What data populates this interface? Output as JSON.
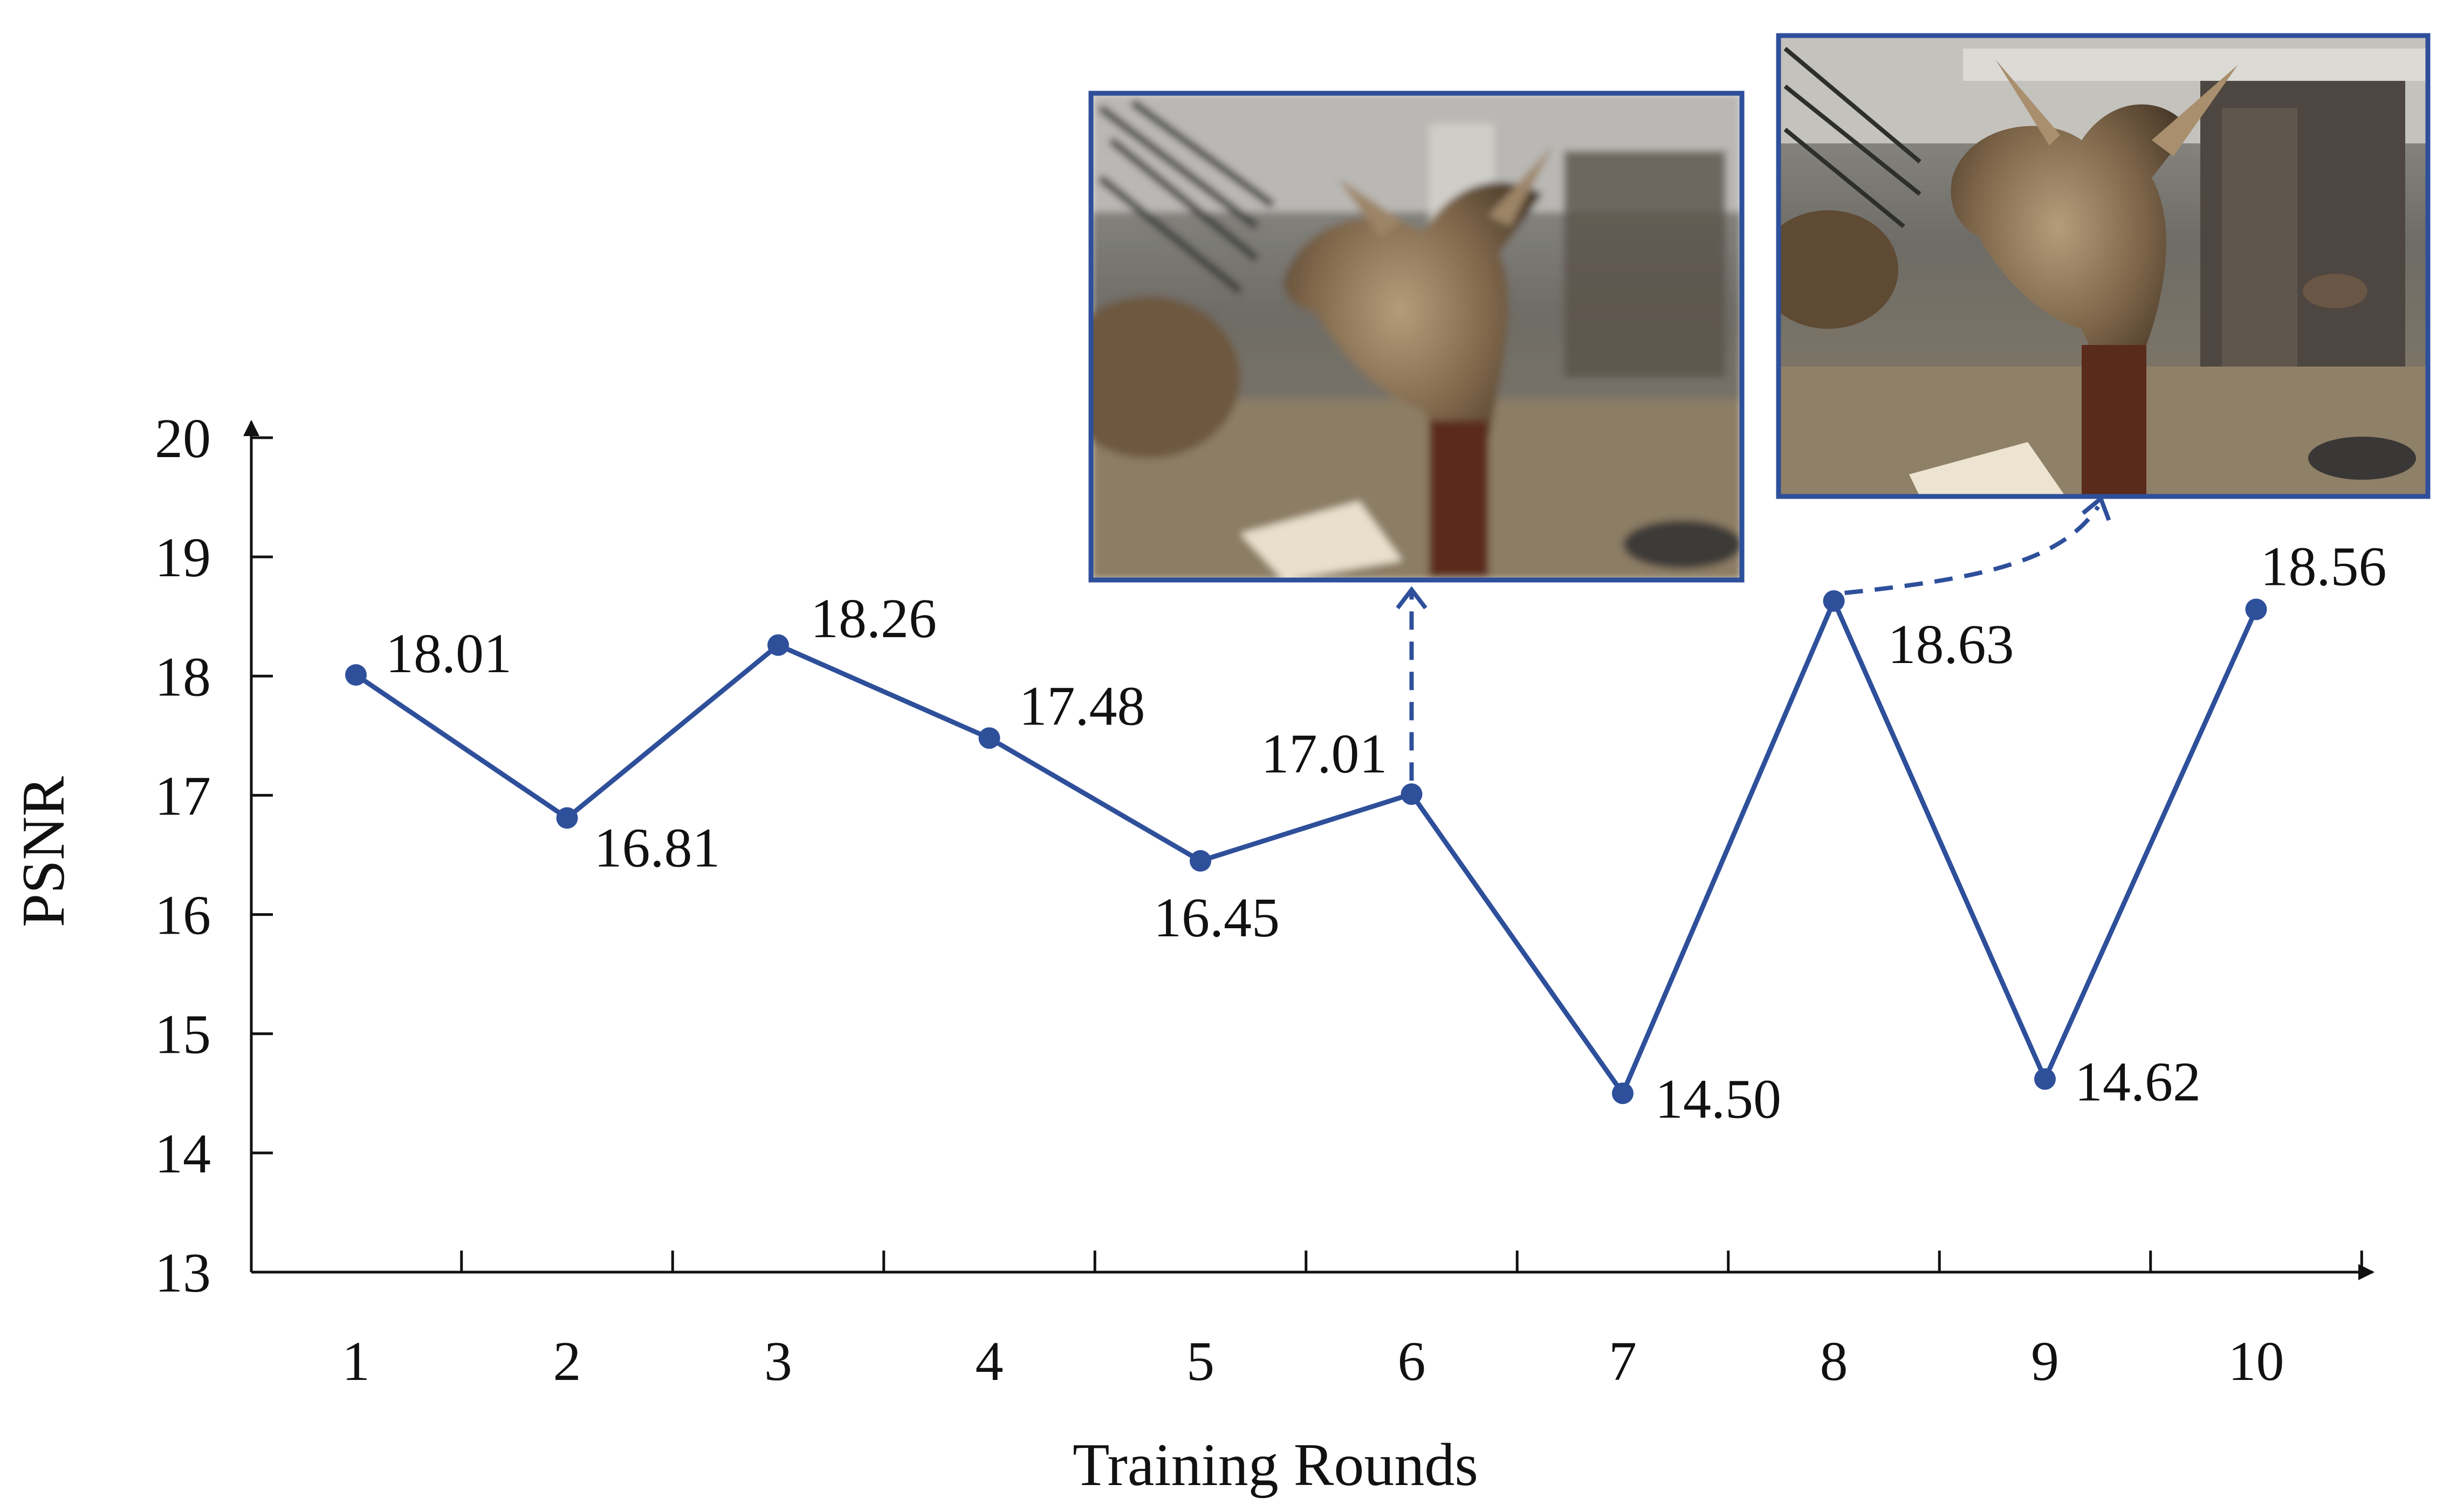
{
  "chart_data": {
    "type": "line",
    "xlabel": "Training Rounds",
    "ylabel": "PSNR",
    "x": [
      1,
      2,
      3,
      4,
      5,
      6,
      7,
      8,
      9,
      10
    ],
    "x_tick_labels": [
      "1",
      "2",
      "3",
      "4",
      "5",
      "6",
      "7",
      "8",
      "9",
      "10"
    ],
    "y_tick_labels": [
      "13",
      "14",
      "15",
      "16",
      "17",
      "18",
      "19",
      "20"
    ],
    "ylim": [
      13,
      20
    ],
    "grid": false,
    "legend": "none",
    "series": [
      {
        "values": [
          18.01,
          16.81,
          18.26,
          17.48,
          16.45,
          17.01,
          14.5,
          18.63,
          14.62,
          18.56
        ],
        "labels": [
          "18.01",
          "16.81",
          "18.26",
          "17.48",
          "16.45",
          "17.01",
          "14.50",
          "18.63",
          "14.62",
          "18.56"
        ],
        "color": "#2e4f9a"
      }
    ],
    "annotations": [
      {
        "type": "inset-render",
        "round": 6,
        "subject": "triceratops-skull-render-blurry",
        "connector": "dashed-arrow"
      },
      {
        "type": "inset-render",
        "round": 8,
        "subject": "triceratops-skull-render-sharp",
        "connector": "dashed-arrow"
      }
    ]
  },
  "colors": {
    "line": "#2e4f9a",
    "axis": "#111111",
    "inset_border": "#2e4f9a"
  }
}
